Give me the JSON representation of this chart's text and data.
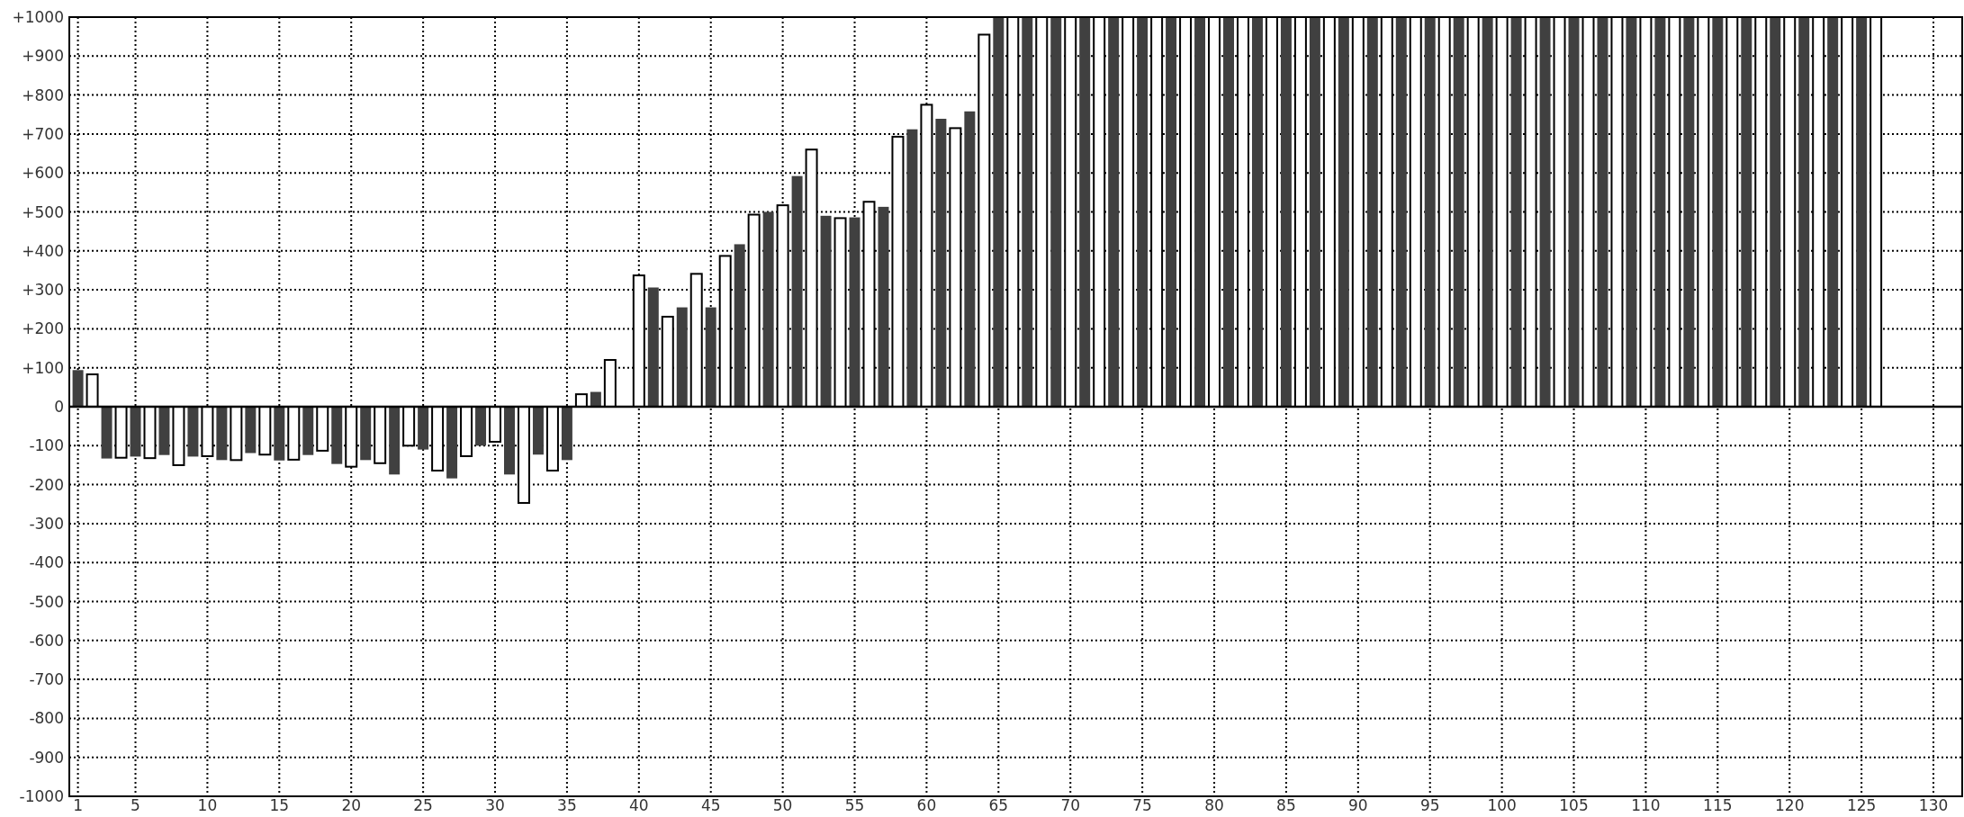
{
  "chart_data": {
    "type": "bar",
    "xlim": [
      0.4,
      132
    ],
    "xticks": [
      1,
      5,
      10,
      15,
      20,
      25,
      30,
      35,
      40,
      45,
      50,
      55,
      60,
      65,
      70,
      75,
      80,
      85,
      90,
      95,
      100,
      105,
      110,
      115,
      120,
      125,
      130
    ],
    "ylim": [
      -1000,
      1000
    ],
    "yticks": [
      {
        "value": -1000,
        "label": "-1000"
      },
      {
        "value": -900,
        "label": "-900"
      },
      {
        "value": -800,
        "label": "-800"
      },
      {
        "value": -700,
        "label": "-700"
      },
      {
        "value": -600,
        "label": "-600"
      },
      {
        "value": -500,
        "label": "-500"
      },
      {
        "value": -400,
        "label": "-400"
      },
      {
        "value": -300,
        "label": "-300"
      },
      {
        "value": -200,
        "label": "-200"
      },
      {
        "value": -100,
        "label": "-100"
      },
      0,
      {
        "value": 100,
        "label": "+100"
      },
      {
        "value": 200,
        "label": "+200"
      },
      {
        "value": 300,
        "label": "+300"
      },
      {
        "value": 400,
        "label": "+400"
      },
      {
        "value": 500,
        "label": "+500"
      },
      {
        "value": 600,
        "label": "+600"
      },
      {
        "value": 700,
        "label": "+700"
      },
      {
        "value": 800,
        "label": "+800"
      },
      {
        "value": 900,
        "label": "+900"
      },
      {
        "value": 1000,
        "label": "+1000"
      }
    ],
    "grid": true,
    "series": [
      {
        "color": "#404040",
        "x": [
          1,
          3,
          5,
          7,
          9,
          11,
          13,
          15,
          17,
          19,
          21,
          23,
          25,
          27,
          29,
          31,
          33,
          35,
          37,
          39,
          41,
          43,
          45,
          47,
          49,
          51,
          53,
          55,
          57,
          59,
          61,
          63,
          65,
          67,
          69,
          71,
          73,
          75,
          77,
          79,
          81,
          83,
          85,
          87,
          89,
          91,
          93,
          95,
          97,
          99,
          101,
          103,
          105,
          107,
          109,
          111,
          113,
          115,
          117,
          119,
          121,
          123,
          125
        ],
        "values": [
          94,
          -133,
          -128,
          -124,
          -128,
          -137,
          -119,
          -138,
          -124,
          -147,
          -137,
          -174,
          -110,
          -184,
          -100,
          -174,
          -123,
          -137,
          38,
          null,
          306,
          255,
          255,
          417,
          500,
          592,
          490,
          486,
          513,
          712,
          739,
          758,
          1000,
          1000,
          1000,
          1000,
          1000,
          1000,
          1000,
          1000,
          1000,
          1000,
          1000,
          1000,
          1000,
          1000,
          1000,
          1000,
          1000,
          1000,
          1000,
          1000,
          1000,
          1000,
          1000,
          1000,
          1000,
          1000,
          1000,
          1000,
          1000,
          1000,
          1000
        ]
      },
      {
        "color": "#ffffff",
        "x": [
          2,
          4,
          6,
          8,
          10,
          12,
          14,
          16,
          18,
          20,
          22,
          24,
          26,
          28,
          30,
          32,
          34,
          36,
          38,
          40,
          42,
          44,
          46,
          48,
          50,
          52,
          54,
          56,
          58,
          60,
          62,
          64,
          66,
          68,
          70,
          72,
          74,
          76,
          78,
          80,
          82,
          84,
          86,
          88,
          90,
          92,
          94,
          96,
          98,
          100,
          102,
          104,
          106,
          108,
          110,
          112,
          114,
          116,
          118,
          120,
          122,
          124,
          126
        ],
        "values": [
          83,
          -131,
          -132,
          -150,
          -127,
          -137,
          -123,
          -136,
          -113,
          -154,
          -145,
          -100,
          -164,
          -127,
          -90,
          -247,
          -164,
          32,
          120,
          337,
          231,
          341,
          387,
          493,
          517,
          660,
          484,
          526,
          693,
          775,
          715,
          955,
          1000,
          1000,
          1000,
          1000,
          1000,
          1000,
          1000,
          1000,
          1000,
          1000,
          1000,
          1000,
          1000,
          1000,
          1000,
          1000,
          1000,
          1000,
          1000,
          1000,
          1000,
          1000,
          1000,
          1000,
          1000,
          1000,
          1000,
          1000,
          1000,
          1000,
          1000
        ]
      }
    ]
  }
}
